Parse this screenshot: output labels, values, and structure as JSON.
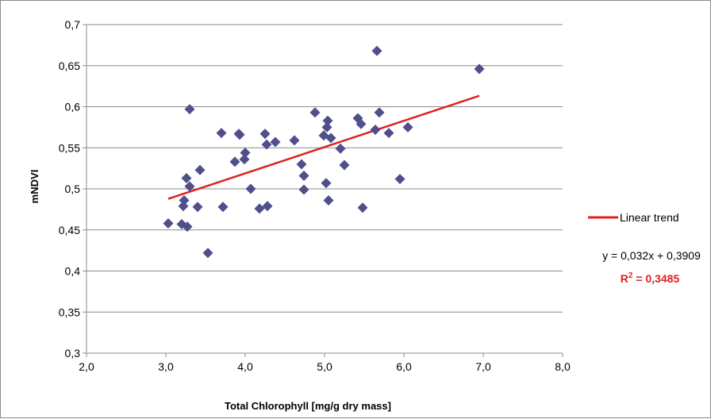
{
  "chart_data": {
    "type": "scatter",
    "title": "",
    "xlabel": "Total Chlorophyll [mg/g dry mass]",
    "ylabel": "mNDVI",
    "xlim": [
      2.0,
      8.0
    ],
    "ylim": [
      0.3,
      0.7
    ],
    "x_ticks": [
      "2,0",
      "3,0",
      "4,0",
      "5,0",
      "6,0",
      "7,0",
      "8,0"
    ],
    "y_ticks": [
      "0,3",
      "0,35",
      "0,4",
      "0,45",
      "0,5",
      "0,55",
      "0,6",
      "0,65",
      "0,7"
    ],
    "grid": "horizontal",
    "legend_position": "right",
    "marker_color": "#4F4F8C",
    "series": [
      {
        "points": [
          [
            3.03,
            0.458
          ],
          [
            3.2,
            0.457
          ],
          [
            3.27,
            0.454
          ],
          [
            3.23,
            0.486
          ],
          [
            3.22,
            0.479
          ],
          [
            3.26,
            0.513
          ],
          [
            3.3,
            0.503
          ],
          [
            3.3,
            0.597
          ],
          [
            3.4,
            0.478
          ],
          [
            3.43,
            0.523
          ],
          [
            3.53,
            0.422
          ],
          [
            3.7,
            0.568
          ],
          [
            3.72,
            0.478
          ],
          [
            3.87,
            0.533
          ],
          [
            3.92,
            0.567
          ],
          [
            3.93,
            0.566
          ],
          [
            3.99,
            0.536
          ],
          [
            4.0,
            0.544
          ],
          [
            4.07,
            0.5
          ],
          [
            4.18,
            0.476
          ],
          [
            4.25,
            0.567
          ],
          [
            4.27,
            0.554
          ],
          [
            4.28,
            0.479
          ],
          [
            4.38,
            0.557
          ],
          [
            4.62,
            0.559
          ],
          [
            4.71,
            0.53
          ],
          [
            4.74,
            0.516
          ],
          [
            4.74,
            0.499
          ],
          [
            4.88,
            0.593
          ],
          [
            4.99,
            0.565
          ],
          [
            5.02,
            0.507
          ],
          [
            5.04,
            0.583
          ],
          [
            5.03,
            0.575
          ],
          [
            5.05,
            0.486
          ],
          [
            5.08,
            0.562
          ],
          [
            5.2,
            0.549
          ],
          [
            5.25,
            0.529
          ],
          [
            5.42,
            0.586
          ],
          [
            5.46,
            0.579
          ],
          [
            5.48,
            0.477
          ],
          [
            5.64,
            0.572
          ],
          [
            5.66,
            0.668
          ],
          [
            5.69,
            0.593
          ],
          [
            5.81,
            0.568
          ],
          [
            5.95,
            0.512
          ],
          [
            6.05,
            0.575
          ],
          [
            6.95,
            0.646
          ]
        ]
      },
      {
        "name": "Linear trend",
        "color": "#E02020",
        "type": "line",
        "slope": 0.032,
        "intercept": 0.3909,
        "x_range": [
          3.03,
          6.95
        ]
      }
    ],
    "annotations": {
      "equation": "y = 0,032x + 0,3909",
      "r2_label": "R",
      "r2_exponent": "2",
      "r2_value": " = 0,3485",
      "r2_color": "#E02020"
    }
  }
}
